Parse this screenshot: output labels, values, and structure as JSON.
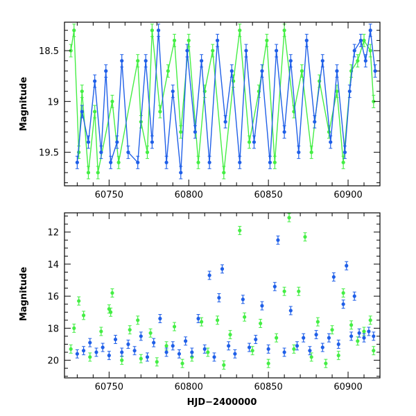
{
  "chart_data": [
    {
      "type": "scatter",
      "panel": "top",
      "xlabel": "",
      "ylabel": "Magnitude",
      "xlim": [
        60722,
        60920
      ],
      "ylim": [
        19.83,
        18.22
      ],
      "y_inverted": true,
      "xticks": [
        60750,
        60800,
        60850,
        60900
      ],
      "yticks": [
        18.5,
        19,
        19.5
      ],
      "series": [
        {
          "color": "#44ee44",
          "marker": "circle",
          "error_bars": true,
          "connected": true,
          "points": [
            [
              60726,
              18.5
            ],
            [
              60728,
              18.3
            ],
            [
              60731,
              19.5
            ],
            [
              60733,
              18.9
            ],
            [
              60737,
              19.7
            ],
            [
              60741,
              19.1
            ],
            [
              60743,
              19.7
            ],
            [
              60752,
              19.0
            ],
            [
              60756,
              19.6
            ],
            [
              60768,
              18.6
            ],
            [
              60770,
              19.2
            ],
            [
              60774,
              19.5
            ],
            [
              60777,
              18.3
            ],
            [
              60782,
              19.1
            ],
            [
              60787,
              18.7
            ],
            [
              60791,
              18.4
            ],
            [
              60795,
              19.3
            ],
            [
              60800,
              18.4
            ],
            [
              60806,
              19.6
            ],
            [
              60810,
              18.9
            ],
            [
              60815,
              18.5
            ],
            [
              60822,
              19.7
            ],
            [
              60828,
              18.8
            ],
            [
              60832,
              18.3
            ],
            [
              60838,
              19.4
            ],
            [
              60844,
              18.9
            ],
            [
              60849,
              18.4
            ],
            [
              60854,
              19.6
            ],
            [
              60860,
              18.3
            ],
            [
              60866,
              19.1
            ],
            [
              60871,
              18.7
            ],
            [
              60877,
              19.5
            ],
            [
              60882,
              18.8
            ],
            [
              60888,
              19.3
            ],
            [
              60893,
              18.9
            ],
            [
              60897,
              19.6
            ],
            [
              60902,
              18.7
            ],
            [
              60906,
              18.6
            ],
            [
              60910,
              18.4
            ],
            [
              60914,
              18.5
            ],
            [
              60916,
              19.0
            ]
          ]
        },
        {
          "color": "#1f5fe8",
          "marker": "circle",
          "error_bars": true,
          "connected": true,
          "points": [
            [
              60730,
              19.6
            ],
            [
              60733,
              19.1
            ],
            [
              60737,
              19.4
            ],
            [
              60741,
              18.8
            ],
            [
              60745,
              19.5
            ],
            [
              60748,
              18.7
            ],
            [
              60751,
              19.6
            ],
            [
              60755,
              19.4
            ],
            [
              60758,
              18.6
            ],
            [
              60762,
              19.5
            ],
            [
              60768,
              19.6
            ],
            [
              60773,
              18.6
            ],
            [
              60777,
              19.4
            ],
            [
              60781,
              18.3
            ],
            [
              60786,
              19.6
            ],
            [
              60790,
              18.9
            ],
            [
              60795,
              19.7
            ],
            [
              60799,
              18.5
            ],
            [
              60804,
              19.3
            ],
            [
              60808,
              18.6
            ],
            [
              60813,
              19.6
            ],
            [
              60818,
              18.4
            ],
            [
              60823,
              19.2
            ],
            [
              60827,
              18.7
            ],
            [
              60832,
              19.6
            ],
            [
              60836,
              18.5
            ],
            [
              60841,
              19.4
            ],
            [
              60846,
              18.7
            ],
            [
              60851,
              19.6
            ],
            [
              60855,
              18.5
            ],
            [
              60860,
              19.3
            ],
            [
              60864,
              18.6
            ],
            [
              60869,
              19.5
            ],
            [
              60874,
              18.4
            ],
            [
              60879,
              19.2
            ],
            [
              60884,
              18.6
            ],
            [
              60889,
              19.4
            ],
            [
              60893,
              18.7
            ],
            [
              60898,
              19.5
            ],
            [
              60901,
              18.9
            ],
            [
              60904,
              18.5
            ],
            [
              60908,
              18.4
            ],
            [
              60911,
              18.6
            ],
            [
              60914,
              18.3
            ],
            [
              60917,
              18.7
            ]
          ]
        }
      ]
    },
    {
      "type": "scatter",
      "panel": "bottom",
      "xlabel": "HJD−2400000",
      "ylabel": "Magnitude",
      "xlim": [
        60722,
        60920
      ],
      "ylim": [
        21.1,
        10.8
      ],
      "y_inverted": true,
      "xticks": [
        60750,
        60800,
        60850,
        60900
      ],
      "yticks": [
        12,
        14,
        16,
        18,
        20
      ],
      "series": [
        {
          "color": "#44ee44",
          "marker": "circle",
          "error_bars": true,
          "points": [
            [
              60726,
              19.3
            ],
            [
              60728,
              18.0
            ],
            [
              60731,
              16.3
            ],
            [
              60734,
              17.2
            ],
            [
              60738,
              19.8
            ],
            [
              60745,
              18.2
            ],
            [
              60750,
              16.8
            ],
            [
              60751,
              17.0
            ],
            [
              60752,
              15.8
            ],
            [
              60758,
              20.0
            ],
            [
              60763,
              18.1
            ],
            [
              60768,
              17.5
            ],
            [
              60770,
              19.9
            ],
            [
              60776,
              18.3
            ],
            [
              60780,
              20.1
            ],
            [
              60786,
              19.1
            ],
            [
              60791,
              17.9
            ],
            [
              60796,
              20.2
            ],
            [
              60802,
              19.8
            ],
            [
              60808,
              17.6
            ],
            [
              60812,
              19.5
            ],
            [
              60818,
              17.5
            ],
            [
              60822,
              20.3
            ],
            [
              60826,
              18.4
            ],
            [
              60832,
              11.9
            ],
            [
              60835,
              17.3
            ],
            [
              60840,
              19.4
            ],
            [
              60845,
              17.7
            ],
            [
              60850,
              20.2
            ],
            [
              60855,
              18.6
            ],
            [
              60860,
              15.7
            ],
            [
              60863,
              11.1
            ],
            [
              60866,
              19.3
            ],
            [
              60869,
              15.7
            ],
            [
              60873,
              12.3
            ],
            [
              60877,
              19.8
            ],
            [
              60881,
              17.6
            ],
            [
              60886,
              20.2
            ],
            [
              60890,
              18.1
            ],
            [
              60894,
              19.7
            ],
            [
              60897,
              15.8
            ],
            [
              60902,
              17.8
            ],
            [
              60906,
              18.8
            ],
            [
              60910,
              18.2
            ],
            [
              60914,
              17.5
            ],
            [
              60916,
              19.4
            ]
          ]
        },
        {
          "color": "#1f5fe8",
          "marker": "circle",
          "error_bars": true,
          "points": [
            [
              60730,
              19.6
            ],
            [
              60734,
              19.4
            ],
            [
              60738,
              18.9
            ],
            [
              60742,
              19.5
            ],
            [
              60746,
              19.2
            ],
            [
              60750,
              19.7
            ],
            [
              60754,
              18.7
            ],
            [
              60758,
              19.5
            ],
            [
              60762,
              19.0
            ],
            [
              60766,
              19.4
            ],
            [
              60770,
              18.5
            ],
            [
              60774,
              19.8
            ],
            [
              60778,
              18.9
            ],
            [
              60782,
              17.4
            ],
            [
              60786,
              19.5
            ],
            [
              60790,
              19.1
            ],
            [
              60794,
              19.6
            ],
            [
              60798,
              18.8
            ],
            [
              60802,
              19.5
            ],
            [
              60806,
              17.4
            ],
            [
              60810,
              19.3
            ],
            [
              60813,
              14.7
            ],
            [
              60816,
              19.8
            ],
            [
              60819,
              16.1
            ],
            [
              60821,
              14.3
            ],
            [
              60825,
              19.1
            ],
            [
              60829,
              19.6
            ],
            [
              60834,
              16.2
            ],
            [
              60838,
              19.2
            ],
            [
              60842,
              18.7
            ],
            [
              60846,
              16.6
            ],
            [
              60850,
              19.3
            ],
            [
              60854,
              15.4
            ],
            [
              60856,
              12.5
            ],
            [
              60860,
              19.5
            ],
            [
              60864,
              16.9
            ],
            [
              60868,
              19.1
            ],
            [
              60872,
              18.6
            ],
            [
              60876,
              19.4
            ],
            [
              60880,
              18.4
            ],
            [
              60884,
              19.2
            ],
            [
              60888,
              18.6
            ],
            [
              60891,
              14.8
            ],
            [
              60894,
              19.0
            ],
            [
              60897,
              16.5
            ],
            [
              60899,
              14.1
            ],
            [
              60902,
              18.5
            ],
            [
              60904,
              16.0
            ],
            [
              60907,
              18.3
            ],
            [
              60910,
              18.6
            ],
            [
              60913,
              18.2
            ],
            [
              60916,
              18.5
            ]
          ]
        }
      ]
    }
  ]
}
